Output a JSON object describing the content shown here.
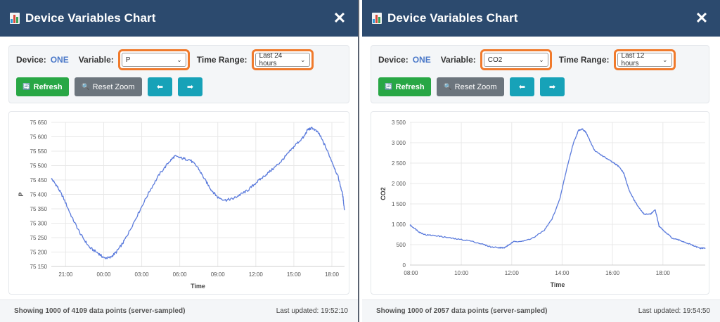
{
  "panels": [
    {
      "window_title": "Device Variables Chart",
      "close_symbol": "✕",
      "device_label": "Device:",
      "device_value": "ONE",
      "variable_label": "Variable:",
      "variable_value": "P",
      "time_range_label": "Time Range:",
      "time_range_value": "Last 24 hours",
      "buttons": {
        "refresh": "Refresh",
        "reset_zoom": "Reset Zoom",
        "prev": "⬅",
        "next": "➡"
      },
      "footer_left": "Showing 1000 of 4109 data points (server-sampled)",
      "footer_right": "Last updated: 19:52:10"
    },
    {
      "window_title": "Device Variables Chart",
      "close_symbol": "✕",
      "device_label": "Device:",
      "device_value": "ONE",
      "variable_label": "Variable:",
      "variable_value": "CO2",
      "time_range_label": "Time Range:",
      "time_range_value": "Last 12 hours",
      "buttons": {
        "refresh": "Refresh",
        "reset_zoom": "Reset Zoom",
        "prev": "⬅",
        "next": "➡"
      },
      "footer_left": "Showing 1000 of 2057 data points (server-sampled)",
      "footer_right": "Last updated: 19:54:50"
    }
  ],
  "colors": {
    "titlebar": "#2c4a6e",
    "line": "#5b7bdc",
    "highlight": "#f07a2c",
    "refresh": "#28a745",
    "reset": "#6c757d",
    "nav": "#17a2b8"
  },
  "chart_data": [
    {
      "type": "line",
      "xlabel": "Time",
      "ylabel": "P",
      "ylim": [
        75150,
        75650
      ],
      "y_ticks": [
        75150,
        75200,
        75250,
        75300,
        75350,
        75400,
        75450,
        75500,
        75550,
        75600,
        75650
      ],
      "y_tick_labels": [
        "75 150",
        "75 200",
        "75 250",
        "75 300",
        "75 350",
        "75 400",
        "75 450",
        "75 500",
        "75 550",
        "75 600",
        "75 650"
      ],
      "xlim": [
        19.87,
        43.0
      ],
      "x_ticks": [
        21,
        24,
        27,
        30,
        33,
        36,
        39,
        42
      ],
      "x_tick_labels": [
        "21:00",
        "00:00",
        "03:00",
        "06:00",
        "09:00",
        "12:00",
        "15:00",
        "18:00"
      ],
      "grid": true,
      "series": [
        {
          "x": [
            19.87,
            20.3,
            20.8,
            21.5,
            22.2,
            22.9,
            23.6,
            24.0,
            24.5,
            25.0,
            25.5,
            26.0,
            26.8,
            27.6,
            28.4,
            29.2,
            29.6,
            30.2,
            30.8,
            31.4,
            32.0,
            32.5,
            33.0,
            33.6,
            34.2,
            34.8,
            35.4,
            36.0,
            36.7,
            37.4,
            38.0,
            38.6,
            39.2,
            39.8,
            40.1,
            40.5,
            41.0,
            41.5,
            42.0,
            42.5,
            42.85,
            43.0
          ],
          "y": [
            75455,
            75430,
            75390,
            75320,
            75260,
            75215,
            75195,
            75180,
            75180,
            75200,
            75230,
            75270,
            75340,
            75410,
            75470,
            75515,
            75532,
            75525,
            75520,
            75495,
            75450,
            75415,
            75390,
            75380,
            75385,
            75400,
            75415,
            75440,
            75465,
            75490,
            75515,
            75545,
            75575,
            75600,
            75625,
            75630,
            75610,
            75565,
            75515,
            75460,
            75400,
            75345
          ]
        }
      ]
    },
    {
      "type": "line",
      "xlabel": "Time",
      "ylabel": "CO2",
      "ylim": [
        0,
        3500
      ],
      "y_ticks": [
        0,
        500,
        1000,
        1500,
        2000,
        2500,
        3000,
        3500
      ],
      "y_tick_labels": [
        "0",
        "500",
        "1 000",
        "1 500",
        "2 000",
        "2 500",
        "3 000",
        "3 500"
      ],
      "xlim": [
        7.96,
        19.68
      ],
      "x_ticks": [
        8,
        10,
        12,
        14,
        16,
        18
      ],
      "x_tick_labels": [
        "08:00",
        "10:00",
        "12:00",
        "14:00",
        "16:00",
        "18:00"
      ],
      "grid": true,
      "series": [
        {
          "x": [
            7.96,
            8.15,
            8.35,
            8.6,
            9.0,
            9.4,
            9.8,
            10.3,
            10.8,
            11.2,
            11.5,
            11.7,
            11.9,
            12.1,
            12.5,
            12.9,
            13.3,
            13.6,
            13.9,
            14.2,
            14.45,
            14.65,
            14.8,
            14.95,
            15.1,
            15.3,
            15.55,
            15.8,
            16.05,
            16.25,
            16.45,
            16.65,
            16.85,
            17.05,
            17.25,
            17.5,
            17.7,
            17.85,
            18.1,
            18.4,
            18.7,
            19.0,
            19.3,
            19.5,
            19.68
          ],
          "y": [
            980,
            900,
            800,
            740,
            720,
            680,
            640,
            600,
            520,
            440,
            430,
            420,
            500,
            580,
            590,
            680,
            860,
            1130,
            1600,
            2400,
            3000,
            3300,
            3340,
            3250,
            3050,
            2800,
            2700,
            2600,
            2500,
            2420,
            2250,
            1850,
            1600,
            1400,
            1250,
            1250,
            1350,
            950,
            800,
            650,
            600,
            530,
            450,
            410,
            420
          ]
        }
      ]
    }
  ]
}
